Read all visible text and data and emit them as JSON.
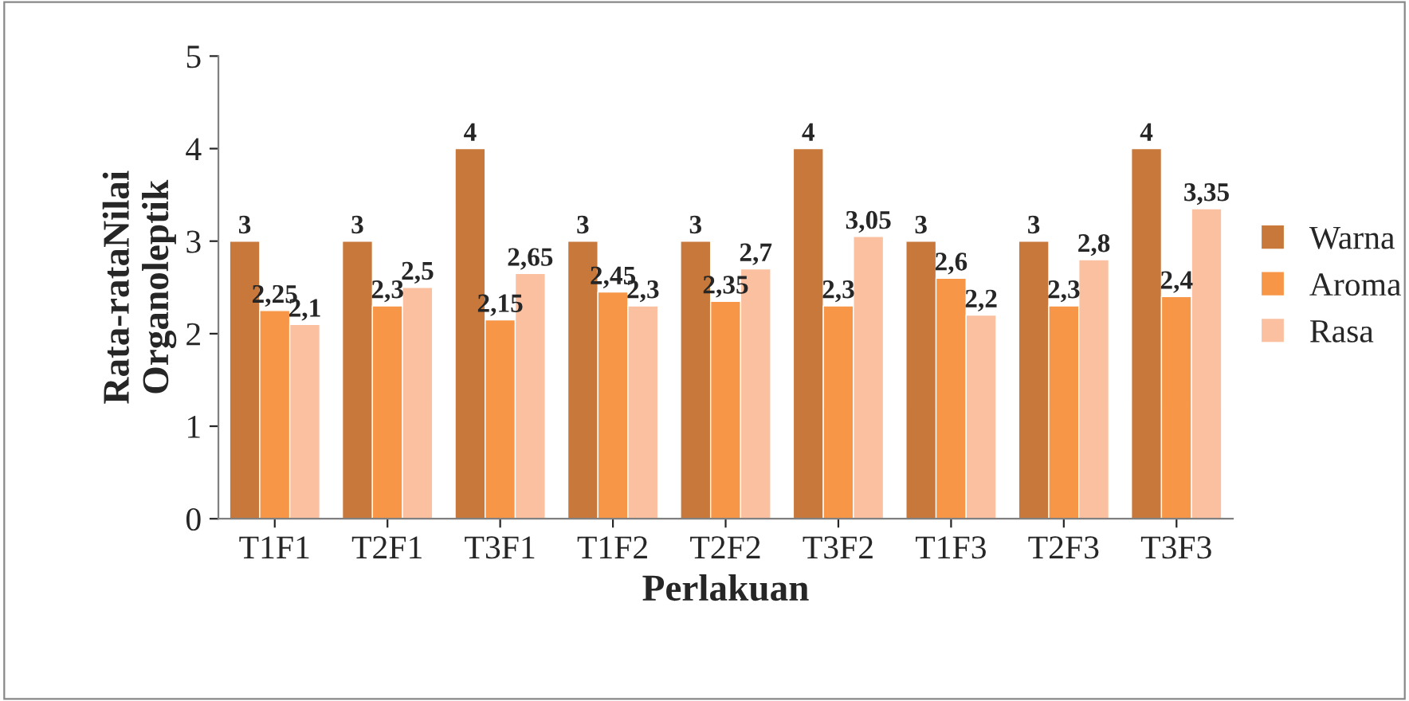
{
  "chart_data": {
    "type": "bar",
    "xlabel": "Perlakuan",
    "ylabel": "Rata-rataNilai\nOrganoleptik",
    "categories": [
      "T1F1",
      "T2F1",
      "T3F1",
      "T1F2",
      "T2F2",
      "T3F2",
      "T1F3",
      "T2F3",
      "T3F3"
    ],
    "series": [
      {
        "name": "Warna",
        "color": "#c8783a",
        "values": [
          3,
          3,
          4,
          3,
          3,
          4,
          3,
          3,
          4
        ],
        "value_labels": [
          "3",
          "3",
          "4",
          "3",
          "3",
          "4",
          "3",
          "3",
          "4"
        ]
      },
      {
        "name": "Aroma",
        "color": "#f79646",
        "values": [
          2.25,
          2.3,
          2.15,
          2.45,
          2.35,
          2.3,
          2.6,
          2.3,
          2.4
        ],
        "value_labels": [
          "2,25",
          "2,3",
          "2,15",
          "2,45",
          "2,35",
          "2,3",
          "2,6",
          "2,3",
          "2,4"
        ]
      },
      {
        "name": "Rasa",
        "color": "#fac0a0",
        "values": [
          2.1,
          2.5,
          2.65,
          2.3,
          2.7,
          3.05,
          2.2,
          2.8,
          3.35
        ],
        "value_labels": [
          "2,1",
          "2,5",
          "2,65",
          "2,3",
          "2,7",
          "3,05",
          "2,2",
          "2,8",
          "3,35"
        ]
      }
    ],
    "ylim": [
      0,
      5
    ],
    "yticks": [
      0,
      1,
      2,
      3,
      4,
      5
    ],
    "grid": false,
    "legend": "right"
  }
}
